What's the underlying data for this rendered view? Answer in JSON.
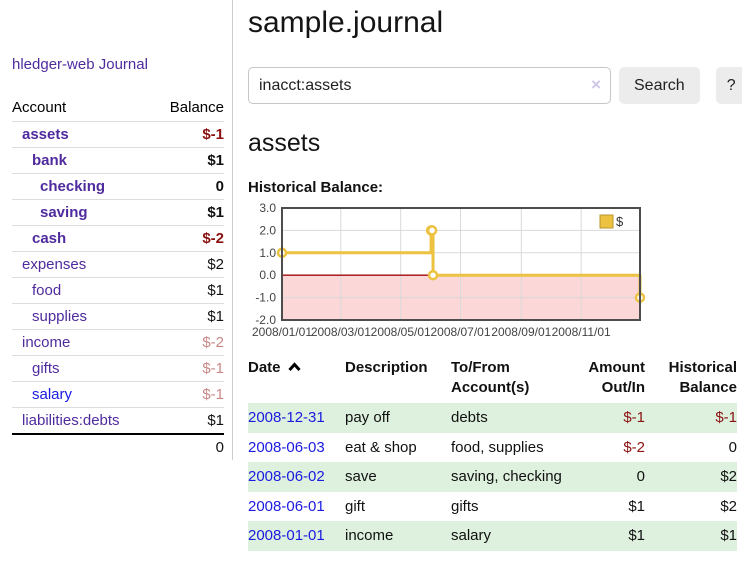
{
  "sidebar": {
    "app_title": "hledger-web",
    "journal_link": "Journal",
    "accounts_table": {
      "headers": [
        "Account",
        "Balance"
      ],
      "rows": [
        {
          "account": "assets",
          "depth": 1,
          "bold": true,
          "blue": false,
          "balance": "$-1",
          "balance_style": "neg-strong"
        },
        {
          "account": "bank",
          "depth": 2,
          "bold": true,
          "blue": false,
          "balance": "$1",
          "balance_style": "pos-strong"
        },
        {
          "account": "checking",
          "depth": 3,
          "bold": true,
          "blue": false,
          "balance": "0",
          "balance_style": "pos-strong"
        },
        {
          "account": "saving",
          "depth": 3,
          "bold": true,
          "blue": false,
          "balance": "$1",
          "balance_style": "pos-strong"
        },
        {
          "account": "cash",
          "depth": 2,
          "bold": true,
          "blue": false,
          "balance": "$-2",
          "balance_style": "neg-strong"
        },
        {
          "account": "expenses",
          "depth": 1,
          "bold": false,
          "blue": false,
          "balance": "$2",
          "balance_style": "pos"
        },
        {
          "account": "food",
          "depth": 2,
          "bold": false,
          "blue": false,
          "balance": "$1",
          "balance_style": "pos"
        },
        {
          "account": "supplies",
          "depth": 2,
          "bold": false,
          "blue": false,
          "balance": "$1",
          "balance_style": "pos"
        },
        {
          "account": "income",
          "depth": 1,
          "bold": false,
          "blue": false,
          "balance": "$-2",
          "balance_style": "neg-soft"
        },
        {
          "account": "gifts",
          "depth": 2,
          "bold": false,
          "blue": false,
          "balance": "$-1",
          "balance_style": "neg-soft"
        },
        {
          "account": "salary",
          "depth": 2,
          "bold": false,
          "blue": true,
          "balance": "$-1",
          "balance_style": "neg-soft"
        },
        {
          "account": "liabilities:debts",
          "depth": 1,
          "bold": false,
          "blue": false,
          "balance": "$1",
          "balance_style": "pos"
        }
      ],
      "total": "0"
    }
  },
  "main": {
    "title": "sample.journal",
    "search": {
      "value": "inacct:assets",
      "clear_icon": "×",
      "button_label": "Search",
      "help_label": "?"
    },
    "section_title": "assets",
    "chart_label": "Historical Balance:",
    "register_table": {
      "headers": [
        {
          "label": "Date",
          "align": "left",
          "sorted": "asc"
        },
        {
          "label": "Description",
          "align": "left"
        },
        {
          "label": "To/From Account(s)",
          "align": "left"
        },
        {
          "label": "Amount Out/In",
          "align": "right"
        },
        {
          "label": "Historical Balance",
          "align": "right"
        }
      ],
      "rows": [
        {
          "date": "2008-12-31",
          "description": "pay off",
          "accounts": "debts",
          "amount": "$-1",
          "amount_negative": true,
          "balance": "$-1",
          "balance_negative": true,
          "highlight": true
        },
        {
          "date": "2008-06-03",
          "description": "eat & shop",
          "accounts": "food, supplies",
          "amount": "$-2",
          "amount_negative": true,
          "balance": "0",
          "balance_negative": false,
          "highlight": false
        },
        {
          "date": "2008-06-02",
          "description": "save",
          "accounts": "saving, checking",
          "amount": "0",
          "amount_negative": false,
          "balance": "$2",
          "balance_negative": false,
          "highlight": true
        },
        {
          "date": "2008-06-01",
          "description": "gift",
          "accounts": "gifts",
          "amount": "$1",
          "amount_negative": false,
          "balance": "$2",
          "balance_negative": false,
          "highlight": false
        },
        {
          "date": "2008-01-01",
          "description": "income",
          "accounts": "salary",
          "amount": "$1",
          "amount_negative": false,
          "balance": "$1",
          "balance_negative": false,
          "highlight": true
        }
      ]
    }
  },
  "chart_data": {
    "type": "line",
    "title": "Historical Balance:",
    "step": true,
    "xlim": [
      "2008-01-01",
      "2008-12-31"
    ],
    "ylim": [
      -2,
      3
    ],
    "y_ticks": [
      3.0,
      2.0,
      1.0,
      0.0,
      -1.0,
      -2.0
    ],
    "x_ticks": [
      "2008/01/01",
      "2008/03/01",
      "2008/05/01",
      "2008/07/01",
      "2008/09/01",
      "2008/11/01"
    ],
    "grid": true,
    "legend_position": "top-right",
    "zero_line_color": "#9e0a0a",
    "negative_fill": "#fbd7d7",
    "series": [
      {
        "name": "$",
        "color": "#edc240",
        "points": [
          {
            "x": "2008-01-01",
            "y": 1
          },
          {
            "x": "2008-06-01",
            "y": 2
          },
          {
            "x": "2008-06-02",
            "y": 2
          },
          {
            "x": "2008-06-03",
            "y": 0
          },
          {
            "x": "2008-12-31",
            "y": -1
          }
        ]
      }
    ]
  }
}
